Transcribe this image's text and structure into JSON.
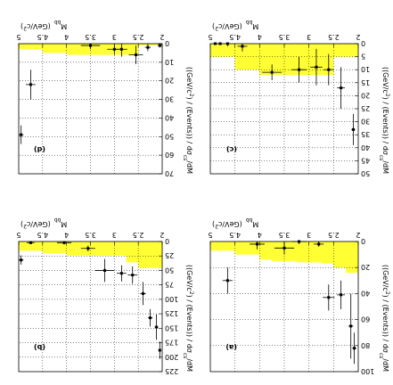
{
  "chart_data": [
    {
      "type": "scatter",
      "label": "(a)",
      "xlabel": "M",
      "xlabel_sub": "bb",
      "xunit": "(GeV/c",
      "xunit_sup": "2",
      "xunit_end": ")",
      "ylabel": "((GeV/c",
      "ylabel_sup": "2",
      "ylabel_mid": ") / (Events)) / dσ",
      "ylabel_sub": "cs",
      "ylabel_end": "/dM",
      "xlim": [
        2,
        5
      ],
      "ylim": [
        0,
        100
      ],
      "xticks": [
        2,
        2.5,
        3,
        3.5,
        4,
        4.5,
        5
      ],
      "yticks": [
        0,
        20,
        40,
        60,
        80,
        100
      ],
      "band_upper": [
        [
          2.0,
          24
        ],
        [
          2.25,
          20
        ],
        [
          2.5,
          17
        ],
        [
          2.75,
          16
        ],
        [
          3.25,
          15
        ],
        [
          3.75,
          14
        ],
        [
          4.0,
          10
        ],
        [
          4.5,
          7
        ],
        [
          5.0,
          7
        ]
      ],
      "points": [
        {
          "x": 2.08,
          "y": 82,
          "xerr": 0.04,
          "yerr": 12
        },
        {
          "x": 2.15,
          "y": 65,
          "xerr": 0.05,
          "yerr": 25
        },
        {
          "x": 2.35,
          "y": 41,
          "xerr": 0.08,
          "yerr": 11
        },
        {
          "x": 2.6,
          "y": 43,
          "xerr": 0.12,
          "yerr": 10
        },
        {
          "x": 2.8,
          "y": 2,
          "xerr": 0.1,
          "yerr": 2
        },
        {
          "x": 3.2,
          "y": 0,
          "xerr": 0.15,
          "yerr": 2
        },
        {
          "x": 3.5,
          "y": 5,
          "xerr": 0.2,
          "yerr": 5
        },
        {
          "x": 4.05,
          "y": 2,
          "xerr": 0.15,
          "yerr": 4
        },
        {
          "x": 4.65,
          "y": 30,
          "xerr": 0.1,
          "yerr": 10
        }
      ]
    },
    {
      "type": "scatter",
      "label": "(b)",
      "xlabel": "M",
      "xlabel_sub": "bb",
      "xunit": "(GeV/c",
      "xunit_sup": "2",
      "xunit_end": ")",
      "ylabel": "((GeV/c",
      "ylabel_sup": "2",
      "ylabel_mid": ") / (Events)) / dσ",
      "ylabel_sub": "cs",
      "ylabel_end": "/dM",
      "xlim": [
        2,
        5
      ],
      "ylim": [
        0,
        225
      ],
      "xticks": [
        2,
        2.5,
        3,
        3.5,
        4,
        4.5,
        5
      ],
      "yticks": [
        0,
        25,
        50,
        75,
        100,
        125,
        150,
        175,
        200,
        225
      ],
      "band_upper": [
        [
          2.0,
          46
        ],
        [
          2.25,
          46
        ],
        [
          2.5,
          36
        ],
        [
          2.75,
          24
        ],
        [
          3.25,
          24
        ],
        [
          3.75,
          24
        ],
        [
          4.0,
          20
        ],
        [
          4.5,
          16
        ],
        [
          5.0,
          12
        ]
      ],
      "points": [
        {
          "x": 2.05,
          "y": 188,
          "xerr": 0.03,
          "yerr": 15
        },
        {
          "x": 2.12,
          "y": 148,
          "xerr": 0.04,
          "yerr": 22
        },
        {
          "x": 2.25,
          "y": 132,
          "xerr": 0.05,
          "yerr": 15
        },
        {
          "x": 2.4,
          "y": 90,
          "xerr": 0.06,
          "yerr": 20
        },
        {
          "x": 2.62,
          "y": 58,
          "xerr": 0.1,
          "yerr": 15
        },
        {
          "x": 2.85,
          "y": 55,
          "xerr": 0.1,
          "yerr": 14
        },
        {
          "x": 3.2,
          "y": 50,
          "xerr": 0.2,
          "yerr": 20
        },
        {
          "x": 3.55,
          "y": 12,
          "xerr": 0.15,
          "yerr": 5
        },
        {
          "x": 4.05,
          "y": 2,
          "xerr": 0.15,
          "yerr": 3
        },
        {
          "x": 4.75,
          "y": 2,
          "xerr": 0.08,
          "yerr": 2
        },
        {
          "x": 4.95,
          "y": 32,
          "xerr": 0.05,
          "yerr": 8
        }
      ]
    },
    {
      "type": "scatter",
      "label": "(c)",
      "xlabel": "M",
      "xlabel_sub": "bb",
      "xunit": "(GeV/c",
      "xunit_sup": "2",
      "xunit_end": ")",
      "ylabel": "((GeV/c",
      "ylabel_sup": "2",
      "ylabel_mid": ") / (Events)) / dσ",
      "ylabel_sub": "cs",
      "ylabel_end": "/dM",
      "xlim": [
        2,
        5
      ],
      "ylim": [
        0,
        50
      ],
      "xticks": [
        2,
        2.5,
        3,
        3.5,
        4,
        4.5,
        5
      ],
      "yticks": [
        0,
        5,
        10,
        15,
        20,
        25,
        30,
        35,
        40,
        45,
        50
      ],
      "band_upper": [
        [
          2.0,
          5
        ],
        [
          2.25,
          5
        ],
        [
          2.5,
          12
        ],
        [
          2.75,
          12
        ],
        [
          3.25,
          12
        ],
        [
          3.75,
          12
        ],
        [
          4.0,
          10
        ],
        [
          4.5,
          5
        ],
        [
          5.0,
          1
        ]
      ],
      "points": [
        {
          "x": 2.1,
          "y": 33,
          "xerr": 0.04,
          "yerr": 6
        },
        {
          "x": 2.35,
          "y": 17,
          "xerr": 0.08,
          "yerr": 8
        },
        {
          "x": 2.6,
          "y": 10,
          "xerr": 0.1,
          "yerr": 6
        },
        {
          "x": 2.85,
          "y": 9,
          "xerr": 0.12,
          "yerr": 7
        },
        {
          "x": 3.2,
          "y": 10,
          "xerr": 0.15,
          "yerr": 5
        },
        {
          "x": 3.75,
          "y": 11,
          "xerr": 0.2,
          "yerr": 3
        },
        {
          "x": 4.35,
          "y": 1,
          "xerr": 0.1,
          "yerr": 2
        },
        {
          "x": 4.65,
          "y": 0,
          "xerr": 0.05,
          "yerr": 1
        },
        {
          "x": 4.8,
          "y": 0,
          "xerr": 0.05,
          "yerr": 0
        },
        {
          "x": 4.9,
          "y": 0,
          "xerr": 0.05,
          "yerr": 0
        }
      ]
    },
    {
      "type": "scatter",
      "label": "(d)",
      "xlabel": "M",
      "xlabel_sub": "bb",
      "xunit": "(GeV/c",
      "xunit_sup": "2",
      "xunit_end": ")",
      "ylabel": "((GeV/c",
      "ylabel_sup": "2",
      "ylabel_mid": ") / (Events)) / dσ",
      "ylabel_sub": "cs",
      "ylabel_end": "/dM",
      "xlim": [
        2,
        5
      ],
      "ylim": [
        0,
        70
      ],
      "xticks": [
        2,
        2.5,
        3,
        3.5,
        4,
        4.5,
        5
      ],
      "yticks": [
        0,
        10,
        20,
        30,
        40,
        50,
        60,
        70
      ],
      "band_upper": [
        [
          2.0,
          1
        ],
        [
          2.5,
          6
        ],
        [
          2.75,
          6
        ],
        [
          3.25,
          6
        ],
        [
          3.75,
          6
        ],
        [
          4.0,
          5
        ],
        [
          4.5,
          3
        ],
        [
          5.0,
          2
        ]
      ],
      "points": [
        {
          "x": 2.05,
          "y": 1,
          "xerr": 0.04,
          "yerr": 1
        },
        {
          "x": 2.3,
          "y": 2,
          "xerr": 0.06,
          "yerr": 2
        },
        {
          "x": 2.55,
          "y": 6,
          "xerr": 0.15,
          "yerr": 5
        },
        {
          "x": 2.85,
          "y": 3,
          "xerr": 0.12,
          "yerr": 4
        },
        {
          "x": 3.0,
          "y": 3,
          "xerr": 0.15,
          "yerr": 3
        },
        {
          "x": 3.5,
          "y": 1,
          "xerr": 0.2,
          "yerr": 2
        },
        {
          "x": 4.75,
          "y": 22,
          "xerr": 0.1,
          "yerr": 8
        },
        {
          "x": 4.95,
          "y": 49,
          "xerr": 0.05,
          "yerr": 5
        }
      ]
    }
  ]
}
